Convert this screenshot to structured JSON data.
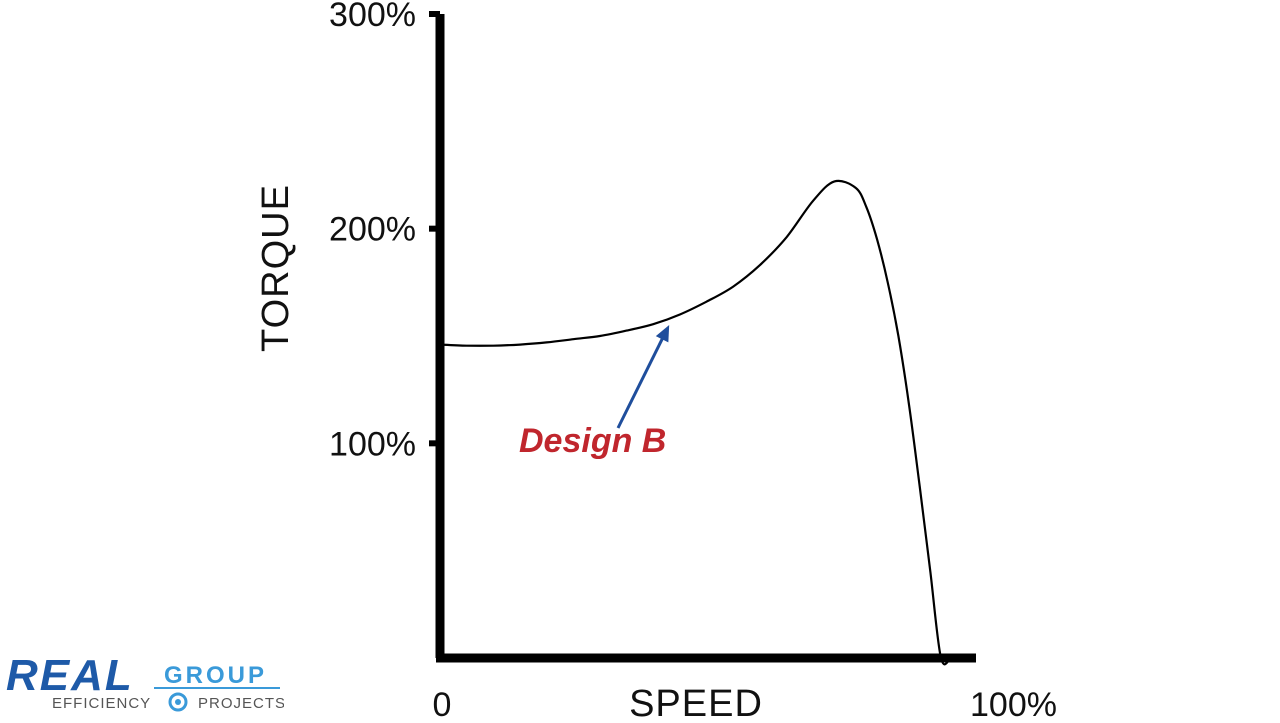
{
  "chart_data": {
    "type": "line",
    "xlabel": "SPEED",
    "ylabel": "TORQUE",
    "xlim": [
      0,
      100
    ],
    "ylim": [
      0,
      300
    ],
    "x_ticks": [
      {
        "value": 0,
        "label": "0"
      },
      {
        "value": 100,
        "label": "100%"
      }
    ],
    "y_ticks": [
      {
        "value": 100,
        "label": "100%"
      },
      {
        "value": 200,
        "label": "200%"
      },
      {
        "value": 300,
        "label": "300%"
      }
    ],
    "grid": false,
    "series": [
      {
        "color": "#000000",
        "x": [
          0,
          5,
          10,
          15,
          20,
          25,
          30,
          35,
          40,
          45,
          50,
          55,
          60,
          65,
          70,
          74,
          78,
          80,
          82,
          84,
          86,
          88,
          90,
          92,
          94,
          96,
          98,
          100
        ],
        "y": [
          146,
          145.5,
          145.5,
          146,
          147,
          148.5,
          150,
          152.5,
          155.5,
          160,
          166,
          173,
          183,
          196,
          213,
          222,
          219,
          210,
          195,
          175,
          150,
          118,
          80,
          40,
          0,
          0,
          0,
          0
        ]
      }
    ],
    "annotations": [
      {
        "text": "Design B",
        "color": "#c0262d",
        "arrow_color": "#1f4e9c",
        "points_to": {
          "x": 43,
          "y": 157
        }
      }
    ]
  },
  "logo": {
    "brand_main": "REAL",
    "brand_secondary": "GROUP",
    "tagline_left": "EFFICIENCY",
    "tagline_right": "PROJECTS",
    "primary_color": "#1e5aa8",
    "accent_color": "#3a9ad9"
  }
}
